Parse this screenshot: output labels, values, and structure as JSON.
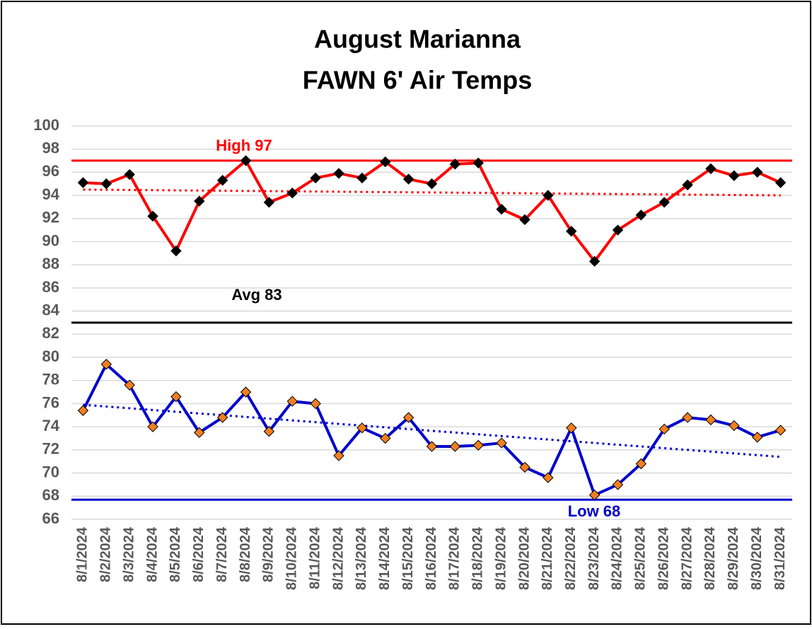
{
  "chart_data": {
    "type": "line",
    "title": [
      "August Marianna",
      "FAWN 6' Air Temps"
    ],
    "categories": [
      "8/1/2024",
      "8/2/2024",
      "8/3/2024",
      "8/4/2024",
      "8/5/2024",
      "8/6/2024",
      "8/7/2024",
      "8/8/2024",
      "8/9/2024",
      "8/10/2024",
      "8/11/2024",
      "8/12/2024",
      "8/13/2024",
      "8/14/2024",
      "8/15/2024",
      "8/16/2024",
      "8/17/2024",
      "8/18/2024",
      "8/19/2024",
      "8/20/2024",
      "8/21/2024",
      "8/22/2024",
      "8/23/2024",
      "8/24/2024",
      "8/25/2024",
      "8/26/2024",
      "8/27/2024",
      "8/28/2024",
      "8/29/2024",
      "8/30/2024",
      "8/31/2024"
    ],
    "series": [
      {
        "color": "#ff0000",
        "marker_color": "#000000",
        "trend": [
          94.5,
          94.0
        ],
        "values": [
          95.1,
          95.0,
          95.8,
          92.2,
          89.2,
          93.5,
          95.3,
          97.0,
          93.4,
          94.2,
          95.5,
          95.9,
          95.5,
          96.9,
          95.4,
          95.0,
          96.7,
          96.8,
          92.8,
          91.9,
          94.0,
          90.9,
          88.3,
          91.0,
          92.3,
          93.4,
          94.9,
          96.3,
          95.7,
          96.0,
          95.1
        ]
      },
      {
        "color": "#0000cc",
        "marker_color": "#f07f20",
        "trend": [
          75.9,
          71.4
        ],
        "values": [
          75.4,
          79.4,
          77.6,
          74.0,
          76.6,
          73.5,
          74.8,
          77.0,
          73.6,
          76.2,
          76.0,
          71.5,
          73.9,
          73.0,
          74.8,
          72.3,
          72.3,
          72.4,
          72.6,
          70.5,
          69.6,
          73.9,
          68.1,
          69.0,
          70.8,
          73.8,
          74.8,
          74.6,
          74.1,
          73.1,
          73.7
        ]
      }
    ],
    "reference_lines": [
      {
        "label": "High 97",
        "value": 97,
        "color": "#ff0000"
      },
      {
        "label": "Avg 83",
        "value": 83,
        "color": "#000000"
      },
      {
        "label": "Low 68",
        "value": 67.7,
        "color": "#0000cc"
      }
    ],
    "ylim": [
      66,
      100
    ],
    "yticks": [
      66,
      68,
      70,
      72,
      74,
      76,
      78,
      80,
      82,
      84,
      86,
      88,
      90,
      92,
      94,
      96,
      98,
      100
    ],
    "grid": true
  }
}
